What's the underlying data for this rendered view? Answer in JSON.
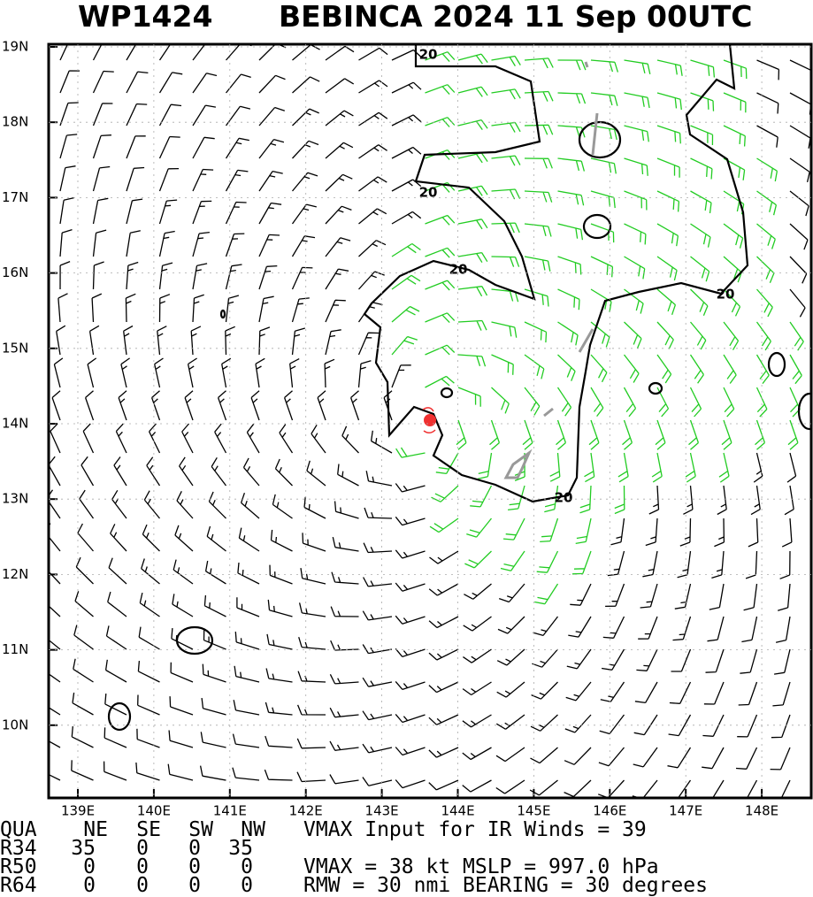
{
  "header": {
    "id": "WP1424",
    "title": "BEBINCA 2024 11 Sep 00UTC"
  },
  "map": {
    "lat_ticks": [
      {
        "value": 19,
        "label": "19N"
      },
      {
        "value": 18,
        "label": "18N"
      },
      {
        "value": 17,
        "label": "17N"
      },
      {
        "value": 16,
        "label": "16N"
      },
      {
        "value": 15,
        "label": "15N"
      },
      {
        "value": 14,
        "label": "14N"
      },
      {
        "value": 13,
        "label": "13N"
      },
      {
        "value": 12,
        "label": "12N"
      },
      {
        "value": 11,
        "label": "11N"
      },
      {
        "value": 10,
        "label": "10N"
      }
    ],
    "lon_ticks": [
      {
        "value": 139,
        "label": "139E"
      },
      {
        "value": 140,
        "label": "140E"
      },
      {
        "value": 141,
        "label": "141E"
      },
      {
        "value": 142,
        "label": "142E"
      },
      {
        "value": 143,
        "label": "143E"
      },
      {
        "value": 144,
        "label": "144E"
      },
      {
        "value": 145,
        "label": "145E"
      },
      {
        "value": 146,
        "label": "146E"
      },
      {
        "value": 147,
        "label": "147E"
      },
      {
        "value": 148,
        "label": "148E"
      }
    ],
    "contour_labels": [
      "20",
      "20",
      "20",
      "20",
      "20"
    ]
  },
  "table": {
    "header": [
      "QUA",
      "NE",
      "SE",
      "SW",
      "NW"
    ],
    "rows": [
      [
        "R34",
        35,
        0,
        0,
        35
      ],
      [
        "R50",
        0,
        0,
        0,
        0
      ],
      [
        "R64",
        0,
        0,
        0,
        0
      ]
    ]
  },
  "info": [
    "VMAX Input for IR Winds =    39",
    "VMAX =    38 kt MSLP =   997.0 hPa",
    "RMW  =   30 nmi BEARING =     30 degrees"
  ]
}
